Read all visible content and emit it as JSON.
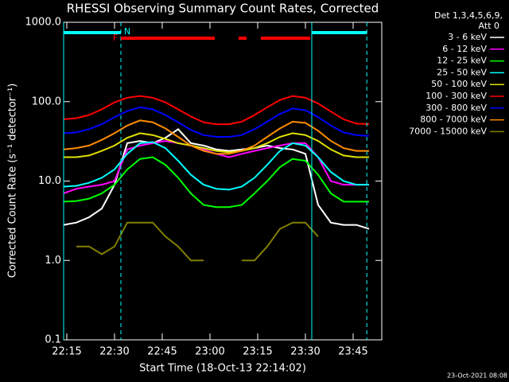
{
  "chart_data": {
    "type": "line",
    "title": "RHESSI Observing Summary Count Rates, Corrected",
    "xlabel": "Start Time (18-Oct-13 22:14:02)",
    "ylabel": "Corrected Count Rate (s⁻¹ detector⁻¹)",
    "footer": "23-Oct-2021 08:08",
    "legend_header": [
      "Det 1,3,4,5,6,9,",
      "Att 0"
    ],
    "log_y": true,
    "xlim": [
      14,
      114
    ],
    "ylim": [
      0.1,
      1000
    ],
    "xticks": [
      {
        "value": 15,
        "label": "22:15"
      },
      {
        "value": 30,
        "label": "22:30"
      },
      {
        "value": 45,
        "label": "22:45"
      },
      {
        "value": 60,
        "label": "23:00"
      },
      {
        "value": 75,
        "label": "23:15"
      },
      {
        "value": 90,
        "label": "23:30"
      },
      {
        "value": 105,
        "label": "23:45"
      }
    ],
    "yticks": [
      {
        "value": 0.1,
        "label": "0.1"
      },
      {
        "value": 1,
        "label": "1.0"
      },
      {
        "value": 10,
        "label": "10.0"
      },
      {
        "value": 100,
        "label": "100.0"
      },
      {
        "value": 1000,
        "label": "1000.0"
      }
    ],
    "vlines": [
      {
        "x": 14,
        "style": "solid",
        "color": "#00ffff"
      },
      {
        "x": 32,
        "style": "dashed",
        "color": "#00ffff"
      },
      {
        "x": 92,
        "style": "solid",
        "color": "#00ffff"
      },
      {
        "x": 109.3,
        "style": "dashed",
        "color": "#00ffff"
      }
    ],
    "flags": [
      {
        "label": "N",
        "color": "#00ffff",
        "spans": [
          [
            14,
            32
          ],
          [
            92,
            109.3
          ]
        ]
      },
      {
        "label": "F",
        "color": "#ff0000",
        "spans": [
          [
            32,
            61.5
          ],
          [
            69,
            71.5
          ],
          [
            76,
            91.5
          ]
        ]
      }
    ],
    "x": [
      14,
      18,
      22,
      26,
      30,
      34,
      38,
      42,
      46,
      50,
      54,
      58,
      62,
      66,
      70,
      74,
      78,
      82,
      86,
      90,
      94,
      98,
      102,
      106,
      110
    ],
    "series": [
      {
        "name": "3 - 6 keV",
        "color": "#ffffff",
        "values": [
          2.8,
          3,
          3.5,
          4.5,
          9,
          30,
          32,
          30,
          35,
          45,
          30,
          28,
          25,
          24,
          25,
          26,
          28,
          26,
          25,
          22,
          5,
          3,
          2.8,
          2.8,
          2.5
        ]
      },
      {
        "name": "6 - 12 keV",
        "color": "#ff00ff",
        "values": [
          7,
          8,
          8.5,
          9,
          10,
          25,
          28,
          30,
          32,
          30,
          28,
          25,
          22,
          20,
          22,
          24,
          26,
          28,
          30,
          30,
          20,
          10,
          9,
          9,
          9
        ]
      },
      {
        "name": "12 - 25 keV",
        "color": "#00ff00",
        "values": [
          5.5,
          5.6,
          6,
          7,
          9,
          14,
          19,
          20,
          16,
          11,
          7,
          5,
          4.7,
          4.7,
          5,
          7,
          10,
          15,
          19,
          18,
          12,
          7,
          5.5,
          5.5,
          5.5
        ]
      },
      {
        "name": "25 - 50 keV",
        "color": "#00ffff",
        "values": [
          8.5,
          8.7,
          9.5,
          11,
          14,
          22,
          30,
          31,
          26,
          18,
          12,
          9,
          8,
          7.8,
          8.5,
          11,
          16,
          24,
          30,
          28,
          20,
          13,
          10,
          9,
          9
        ]
      },
      {
        "name": "50 - 100 keV",
        "color": "#e0e000",
        "values": [
          20,
          20,
          21,
          24,
          28,
          35,
          40,
          38,
          34,
          30,
          28,
          26,
          24,
          23,
          24,
          26,
          30,
          36,
          40,
          38,
          32,
          25,
          21,
          20,
          20
        ]
      },
      {
        "name": "100 - 300 keV",
        "color": "#ff0000",
        "values": [
          60,
          62,
          68,
          80,
          98,
          112,
          118,
          112,
          98,
          80,
          65,
          55,
          52,
          52,
          56,
          68,
          85,
          105,
          118,
          112,
          95,
          75,
          60,
          53,
          52
        ]
      },
      {
        "name": "300 - 800 keV",
        "color": "#0000ff",
        "values": [
          40,
          41,
          45,
          52,
          64,
          76,
          85,
          80,
          68,
          55,
          44,
          38,
          36,
          36,
          38,
          45,
          56,
          70,
          82,
          78,
          64,
          50,
          41,
          38,
          37
        ]
      },
      {
        "name": "800 - 7000 keV",
        "color": "#ff8c00",
        "values": [
          25,
          26,
          28,
          33,
          40,
          50,
          58,
          55,
          46,
          36,
          28,
          24,
          22,
          22,
          24,
          28,
          36,
          46,
          56,
          54,
          43,
          32,
          26,
          24,
          24
        ]
      },
      {
        "name": "7000 - 15000 keV",
        "color": "#808000",
        "values": [
          null,
          1.5,
          1.5,
          1.2,
          1.5,
          3,
          3,
          3,
          2,
          1.5,
          1,
          1,
          null,
          null,
          1,
          1,
          1.5,
          2.5,
          3,
          3,
          2,
          null,
          null,
          null,
          null
        ]
      }
    ]
  }
}
